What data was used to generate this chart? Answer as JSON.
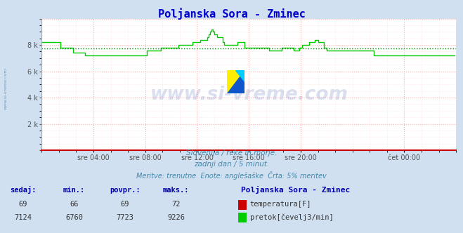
{
  "title": "Poljanska Sora - Zminec",
  "title_color": "#0000cc",
  "bg_color": "#d0e0f0",
  "plot_bg_color": "#ffffff",
  "grid_color_major": "#ffaaaa",
  "grid_color_minor": "#ffdddd",
  "xlabel_ticks": [
    "sre 04:00",
    "sre 08:00",
    "sre 12:00",
    "sre 16:00",
    "sre 20:00",
    "čet 00:00"
  ],
  "xlabel_ticks_pos": [
    0.125,
    0.25,
    0.375,
    0.5,
    0.625,
    0.875
  ],
  "ylim": [
    0,
    10000
  ],
  "xlim": [
    0,
    288
  ],
  "avg_line_value": 7723,
  "avg_line_color": "#008800",
  "flow_line_color": "#00cc00",
  "temp_line_color": "#cc0000",
  "watermark_text": "www.si-vreme.com",
  "watermark_color": "#0000aa",
  "subtitle1": "Slovenija / reke in morje.",
  "subtitle2": "zadnji dan / 5 minut.",
  "subtitle3": "Meritve: trenutne  Enote: anglešaške  Črta: 5% meritev",
  "subtitle_color": "#4488aa",
  "bottom_label_color": "#0000aa",
  "bottom_header": "Poljanska Sora - Zminec",
  "flow_data": [
    8200,
    8200,
    8200,
    8200,
    8200,
    8200,
    8200,
    8200,
    8200,
    8200,
    8200,
    8200,
    8200,
    7800,
    7800,
    7800,
    7800,
    7800,
    7800,
    7800,
    7800,
    7800,
    7400,
    7400,
    7400,
    7400,
    7400,
    7400,
    7400,
    7400,
    7200,
    7200,
    7200,
    7200,
    7200,
    7200,
    7200,
    7200,
    7200,
    7200,
    7200,
    7200,
    7200,
    7200,
    7200,
    7200,
    7200,
    7200,
    7200,
    7200,
    7200,
    7200,
    7200,
    7200,
    7200,
    7200,
    7200,
    7200,
    7200,
    7200,
    7200,
    7200,
    7200,
    7200,
    7200,
    7200,
    7200,
    7200,
    7200,
    7200,
    7200,
    7200,
    7200,
    7600,
    7600,
    7600,
    7600,
    7600,
    7600,
    7600,
    7600,
    7600,
    7600,
    7800,
    7800,
    7800,
    7800,
    7800,
    7800,
    7800,
    7800,
    7800,
    7800,
    7800,
    7800,
    8000,
    8000,
    8000,
    8000,
    8000,
    8000,
    8000,
    8000,
    8000,
    8000,
    8200,
    8200,
    8200,
    8200,
    8200,
    8400,
    8400,
    8400,
    8400,
    8400,
    8600,
    8800,
    9000,
    9200,
    9000,
    8800,
    8800,
    8600,
    8600,
    8600,
    8600,
    8200,
    8000,
    8000,
    8000,
    8000,
    8000,
    8000,
    8000,
    8000,
    8000,
    8200,
    8200,
    8200,
    8200,
    8200,
    7800,
    7800,
    7800,
    7800,
    7800,
    7800,
    7800,
    7800,
    7800,
    7800,
    7800,
    7800,
    7800,
    7800,
    7800,
    7800,
    7800,
    7600,
    7600,
    7600,
    7600,
    7600,
    7600,
    7600,
    7600,
    7600,
    7800,
    7800,
    7800,
    7800,
    7800,
    7800,
    7800,
    7800,
    7600,
    7600,
    7600,
    7600,
    7800,
    7800,
    8000,
    8000,
    8000,
    8000,
    8000,
    8200,
    8200,
    8200,
    8200,
    8400,
    8400,
    8200,
    8200,
    8200,
    8200,
    7800,
    7800,
    7600,
    7600,
    7600,
    7600,
    7600,
    7600,
    7600,
    7600,
    7600,
    7600,
    7600,
    7600,
    7600,
    7600,
    7600,
    7600,
    7600,
    7600,
    7600,
    7600,
    7600,
    7600,
    7600,
    7600,
    7600,
    7600,
    7600,
    7600,
    7600,
    7600,
    7600,
    7600,
    7600,
    7200,
    7200,
    7200,
    7200,
    7200,
    7200,
    7200,
    7200,
    7200,
    7200,
    7200,
    7200,
    7200,
    7200,
    7200,
    7200,
    7200,
    7200,
    7200,
    7200,
    7200,
    7200,
    7200,
    7200,
    7200,
    7200,
    7200,
    7200,
    7200,
    7200,
    7200,
    7200,
    7200,
    7200,
    7200,
    7200,
    7200,
    7200,
    7200,
    7200,
    7200,
    7200,
    7200,
    7200,
    7200,
    7200,
    7200,
    7200,
    7200,
    7200,
    7200,
    7200,
    7200,
    7200,
    7200,
    7200,
    7200
  ],
  "sedaj": 7124,
  "min_val": 6760,
  "povpr_val": 7723,
  "maks_val": 9226,
  "sedaj_temp": 69,
  "min_temp": 66,
  "povpr_temp": 69,
  "maks_temp": 72
}
